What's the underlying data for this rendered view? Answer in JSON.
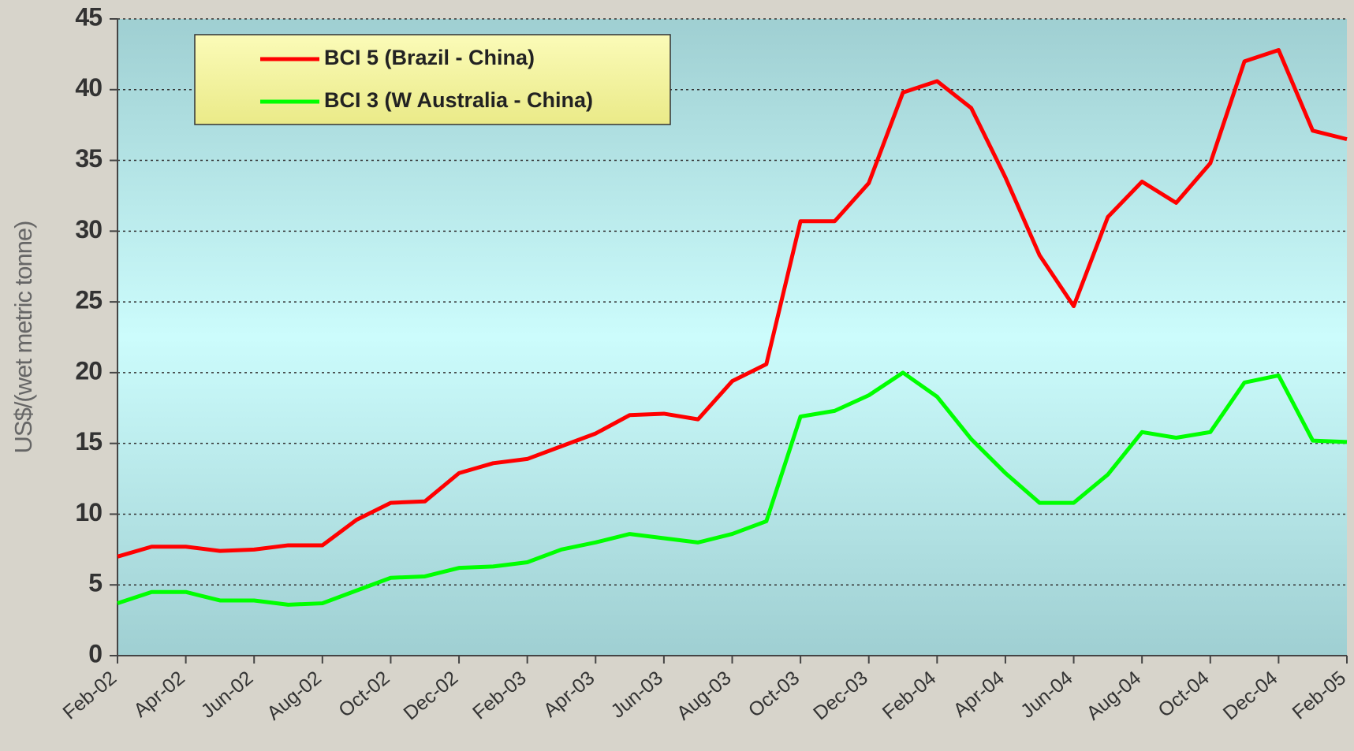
{
  "chart_data": {
    "type": "line",
    "y_label": "US$/(wet metric tonne)",
    "categories": [
      "Feb-02",
      null,
      "Apr-02",
      null,
      "Jun-02",
      null,
      "Aug-02",
      null,
      "Oct-02",
      null,
      "Dec-02",
      null,
      "Feb-03",
      null,
      "Apr-03",
      null,
      "Jun-03",
      null,
      "Aug-03",
      null,
      "Oct-03",
      null,
      "Dec-03",
      null,
      "Feb-04",
      null,
      "Apr-04",
      null,
      "Jun-04",
      null,
      "Aug-04",
      null,
      "Oct-04",
      null,
      "Dec-04",
      null,
      "Feb-05"
    ],
    "series": [
      {
        "name": "BCI 5 (Brazil - China)",
        "color": "#ff0000",
        "values": [
          7.0,
          7.7,
          7.7,
          7.4,
          7.5,
          7.8,
          7.8,
          9.6,
          10.8,
          10.9,
          12.9,
          13.6,
          13.9,
          14.8,
          15.7,
          17.0,
          17.1,
          16.7,
          19.4,
          20.6,
          30.7,
          30.7,
          33.4,
          39.8,
          40.6,
          38.7,
          33.8,
          28.3,
          24.7,
          31.0,
          33.5,
          32.0,
          34.8,
          42.0,
          42.8,
          37.1,
          36.5
        ]
      },
      {
        "name": "BCI 3 (W Australia - China)",
        "color": "#00ff00",
        "values": [
          3.7,
          4.5,
          4.5,
          3.9,
          3.9,
          3.6,
          3.7,
          4.6,
          5.5,
          5.6,
          6.2,
          6.3,
          6.6,
          7.5,
          8.0,
          8.6,
          8.3,
          8.0,
          8.6,
          9.5,
          16.9,
          17.3,
          18.4,
          20.0,
          18.3,
          15.3,
          12.9,
          10.8,
          10.8,
          12.8,
          15.8,
          15.4,
          15.8,
          19.3,
          19.8,
          15.2,
          15.1
        ]
      }
    ],
    "ylim": [
      0,
      45
    ],
    "yticks": [
      0,
      5,
      10,
      15,
      20,
      25,
      30,
      35,
      40,
      45
    ],
    "grid": true,
    "legend": "top-left"
  }
}
